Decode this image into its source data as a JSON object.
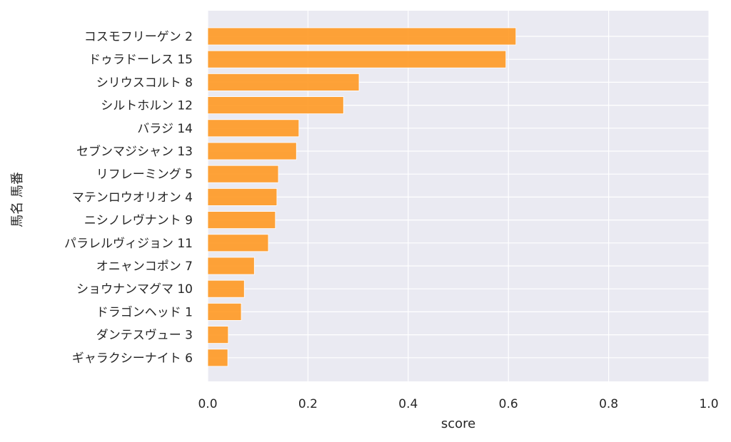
{
  "chart_data": {
    "type": "bar",
    "orientation": "horizontal",
    "xlabel": "score",
    "ylabel": "馬名 馬番",
    "xlim": [
      0,
      1.0
    ],
    "xticks": [
      "0.0",
      "0.2",
      "0.4",
      "0.6",
      "0.8",
      "1.0"
    ],
    "grid": true,
    "bar_color": "#ff9922",
    "background_color": "#eaeaf2",
    "categories": [
      "コスモフリーゲン 2",
      "ドゥラドーレス 15",
      "シリウスコルト 8",
      "シルトホルン 12",
      "バラジ 14",
      "セブンマジシャン 13",
      "リフレーミング 5",
      "マテンロウオリオン 4",
      "ニシノレヴナント 9",
      "パラレルヴィジョン 11",
      "オニャンコポン 7",
      "ショウナンマグマ 10",
      "ドラゴンヘッド 1",
      "ダンテスヴュー 3",
      "ギャラクシーナイト 6"
    ],
    "values": [
      0.615,
      0.595,
      0.302,
      0.271,
      0.182,
      0.177,
      0.141,
      0.138,
      0.135,
      0.121,
      0.093,
      0.073,
      0.067,
      0.041,
      0.04
    ]
  }
}
